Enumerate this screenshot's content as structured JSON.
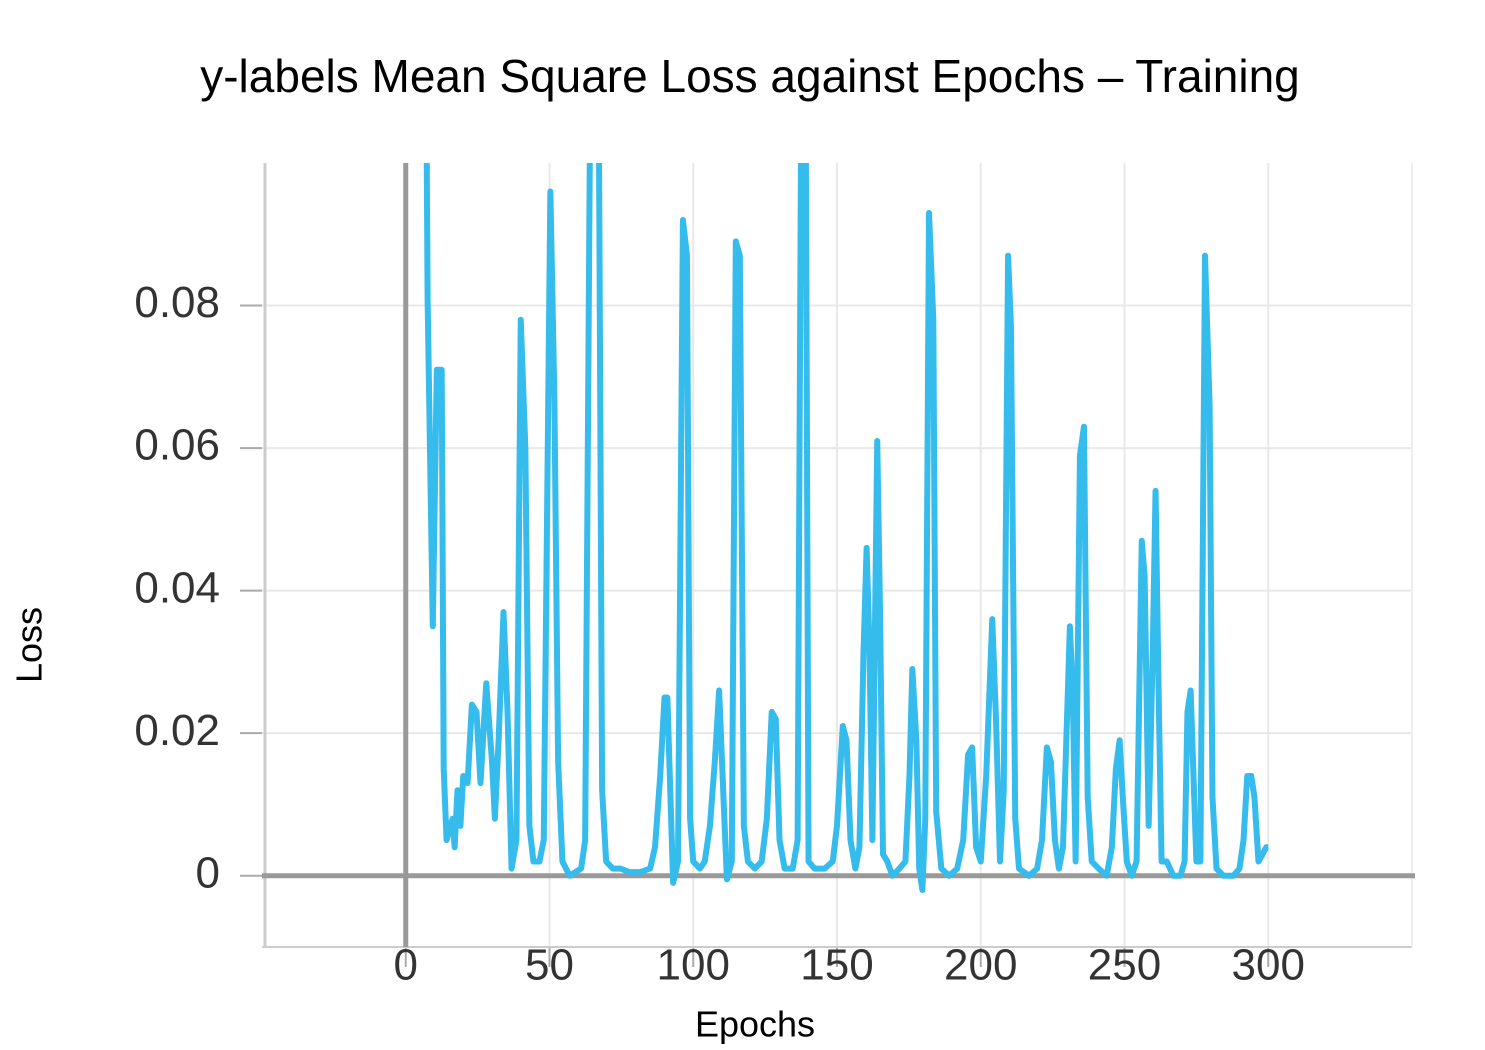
{
  "chart_data": {
    "type": "line",
    "title": "y-labels Mean Square Loss against Epochs – Training",
    "x_label": "Epochs",
    "y_label": "Loss",
    "xlim": [
      -50,
      350
    ],
    "ylim": [
      -0.01,
      0.1
    ],
    "xticks": [
      0,
      50,
      100,
      150,
      200,
      250,
      300
    ],
    "yticks": [
      0,
      0.02,
      0.04,
      0.06,
      0.08
    ],
    "grid": true,
    "series": [
      {
        "color": "#35bbec",
        "x": [
          7,
          7.6,
          9.4,
          10.8,
          12.5,
          13.2,
          14.2,
          16.3,
          17,
          18,
          19,
          20,
          21.5,
          23,
          24.6,
          26,
          28,
          30,
          31,
          32.3,
          34,
          35.4,
          36.8,
          38.5,
          40,
          41.6,
          43,
          44.4,
          46.5,
          48,
          50.3,
          51.7,
          53,
          54.5,
          57,
          61,
          62.4,
          64,
          65,
          67,
          68.3,
          69.7,
          72,
          74.6,
          78,
          81.5,
          85,
          86.7,
          88.5,
          90,
          91,
          93,
          94.7,
          96.4,
          97.8,
          98.9,
          100,
          102.3,
          104,
          105.8,
          107.5,
          109,
          110,
          111.7,
          113.4,
          114.8,
          116.2,
          117.6,
          119,
          121.4,
          123.8,
          125.6,
          127.3,
          128.7,
          130,
          131.8,
          134.6,
          136.3,
          137.7,
          139,
          140.1,
          142.2,
          145.7,
          148.5,
          150,
          152,
          153.3,
          154.7,
          156.4,
          157.8,
          159.2,
          160.3,
          161.3,
          162.3,
          164,
          165,
          166,
          167.5,
          169.3,
          171.7,
          173.8,
          175.2,
          176.2,
          177.6,
          178.6,
          179.7,
          180.7,
          182,
          183.5,
          184.5,
          186.3,
          189,
          191.8,
          193.9,
          195.6,
          197,
          198.4,
          200,
          201.9,
          204,
          205.3,
          206.7,
          208,
          209.5,
          210.5,
          212,
          213.3,
          216.8,
          219.6,
          221.3,
          223,
          224.4,
          225.8,
          227.2,
          228.6,
          230,
          231,
          232,
          233,
          234.5,
          235.9,
          237.2,
          238.6,
          241,
          243.8,
          245.6,
          247,
          248.3,
          249.4,
          250.8,
          252.5,
          254.2,
          256,
          257,
          258.4,
          259.8,
          260.8,
          261.9,
          262.9,
          264.7,
          267,
          269.5,
          270.9,
          271.9,
          273,
          274,
          275,
          276.4,
          278,
          279.6,
          280.6,
          282,
          284.4,
          287.9,
          290,
          291.4,
          292.7,
          294.1,
          295.2,
          296.6,
          298,
          299.3,
          300
        ],
        "values": [
          0.12,
          0.081,
          0.035,
          0.071,
          0.071,
          0.015,
          0.005,
          0.008,
          0.004,
          0.012,
          0.007,
          0.014,
          0.013,
          0.024,
          0.023,
          0.013,
          0.027,
          0.016,
          0.008,
          0.019,
          0.037,
          0.023,
          0.001,
          0.005,
          0.078,
          0.06,
          0.007,
          0.002,
          0.002,
          0.005,
          0.096,
          0.067,
          0.016,
          0.002,
          0,
          0.001,
          0.005,
          0.1,
          0.12,
          0.12,
          0.012,
          0.002,
          0.001,
          0.001,
          0.0005,
          0.0005,
          0.001,
          0.004,
          0.014,
          0.025,
          0.025,
          -0.001,
          0.002,
          0.092,
          0.087,
          0.008,
          0.002,
          0.001,
          0.002,
          0.007,
          0.016,
          0.026,
          0.016,
          -0.0005,
          0.002,
          0.089,
          0.087,
          0.007,
          0.002,
          0.001,
          0.002,
          0.008,
          0.023,
          0.022,
          0.005,
          0.001,
          0.001,
          0.005,
          0.12,
          0.12,
          0.002,
          0.001,
          0.001,
          0.002,
          0.007,
          0.021,
          0.019,
          0.005,
          0.001,
          0.004,
          0.031,
          0.046,
          0.032,
          0.005,
          0.061,
          0.036,
          0.003,
          0.002,
          0,
          0.001,
          0.002,
          0.014,
          0.029,
          0.019,
          0.001,
          -0.002,
          0.008,
          0.093,
          0.078,
          0.009,
          0.001,
          0,
          0.001,
          0.005,
          0.017,
          0.018,
          0.004,
          0.002,
          0.014,
          0.036,
          0.022,
          0.002,
          0.012,
          0.087,
          0.077,
          0.008,
          0.001,
          0,
          0.001,
          0.005,
          0.018,
          0.016,
          0.005,
          0.001,
          0.004,
          0.022,
          0.035,
          0.026,
          0.002,
          0.059,
          0.063,
          0.011,
          0.002,
          0.001,
          0,
          0.004,
          0.015,
          0.019,
          0.011,
          0.002,
          0,
          0.002,
          0.047,
          0.042,
          0.007,
          0.031,
          0.054,
          0.025,
          0.002,
          0.002,
          0,
          0,
          0.002,
          0.023,
          0.026,
          0.014,
          0.002,
          0.002,
          0.087,
          0.066,
          0.011,
          0.001,
          0,
          0,
          0.001,
          0.005,
          0.014,
          0.014,
          0.011,
          0.002,
          0.003,
          0.004,
          0.004
        ]
      }
    ]
  }
}
